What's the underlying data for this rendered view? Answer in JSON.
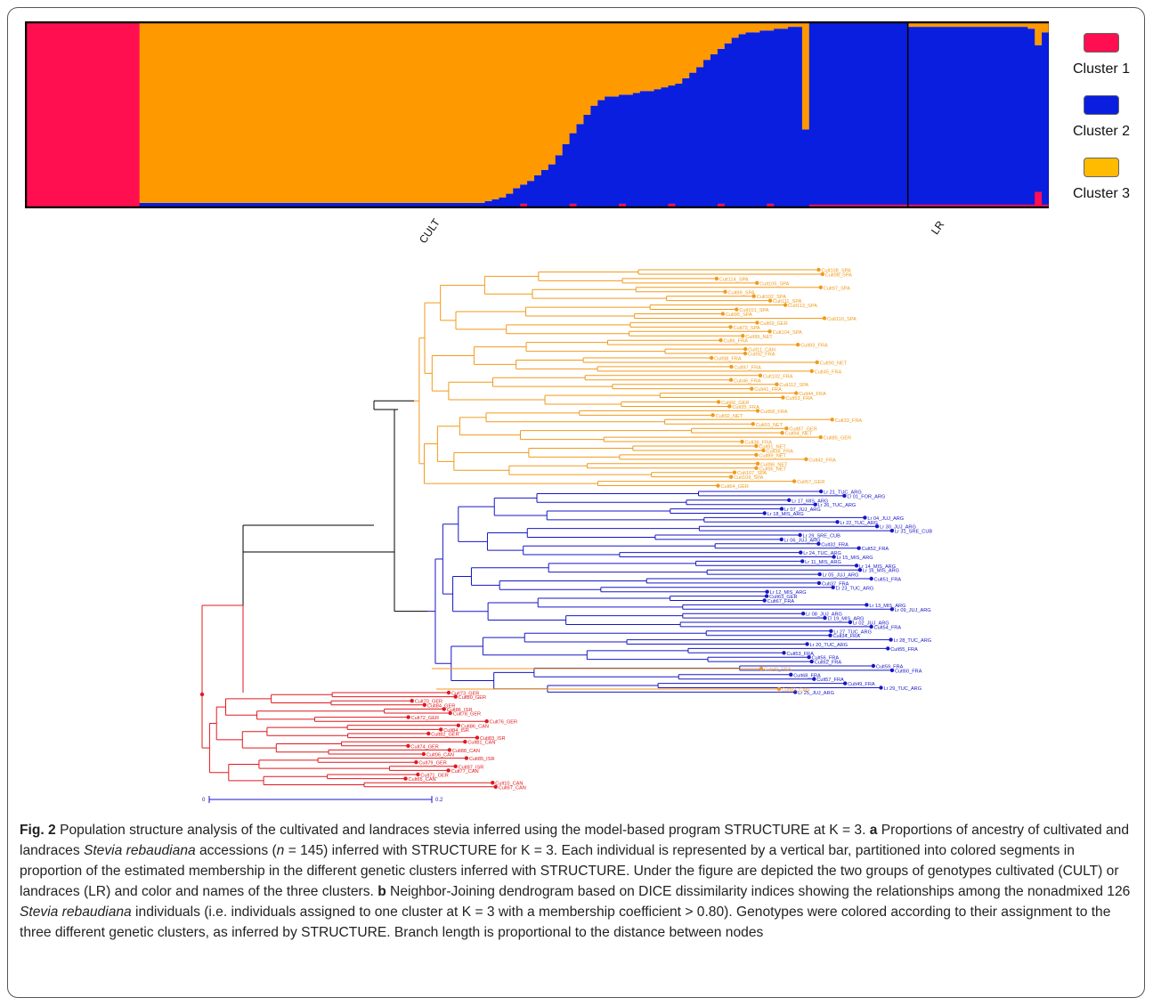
{
  "colors": {
    "cluster1": "#ff0f50",
    "cluster2": "#0a1ee0",
    "cluster3": "#ff9900",
    "tree_orange": "#f29a1a",
    "tree_blue": "#1616c8",
    "tree_red": "#e0191e",
    "tree_black": "#000000"
  },
  "legend": [
    {
      "label": "Cluster 1",
      "color": "#ff0f50"
    },
    {
      "label": "Cluster 2",
      "color": "#0a1ee0"
    },
    {
      "label": "Cluster 3",
      "color": "#ff9900"
    }
  ],
  "groups": {
    "cult": "CULT",
    "lr": "LR"
  },
  "chart_data": {
    "type": "bar",
    "stacked": true,
    "n_individuals": 145,
    "series": [
      {
        "name": "Cluster 1"
      },
      {
        "name": "Cluster 2"
      },
      {
        "name": "Cluster 3"
      }
    ],
    "groups": [
      {
        "name": "CULT",
        "individuals": 125
      },
      {
        "name": "LR",
        "individuals": 20
      }
    ],
    "cluster_blocks": [
      {
        "assigned": "Cluster 1",
        "individuals": 16,
        "membership": [
          1.0,
          0.0,
          0.0
        ]
      },
      {
        "assigned": "Cluster 3",
        "individuals": 48,
        "membership": [
          0.0,
          0.02,
          0.98
        ]
      },
      {
        "assigned": "Cluster 3 / Cluster 2 admixed",
        "individuals": 46,
        "membership_cluster3_profile": [
          0.98,
          0.97,
          0.96,
          0.95,
          0.93,
          0.9,
          0.88,
          0.86,
          0.83,
          0.8,
          0.77,
          0.72,
          0.66,
          0.6,
          0.55,
          0.5,
          0.45,
          0.42,
          0.4,
          0.4,
          0.39,
          0.39,
          0.38,
          0.37,
          0.37,
          0.36,
          0.35,
          0.34,
          0.33,
          0.3,
          0.27,
          0.24,
          0.2,
          0.17,
          0.14,
          0.11,
          0.08,
          0.06,
          0.05,
          0.05,
          0.04,
          0.04,
          0.03,
          0.03,
          0.02,
          0.02
        ]
      },
      {
        "assigned": "Cluster 2",
        "individuals": 15,
        "membership": [
          0.01,
          0.99,
          0.0
        ]
      },
      {
        "assigned": "Cluster 2 (LR)",
        "individuals": 20,
        "membership": [
          0.01,
          0.97,
          0.02
        ]
      }
    ],
    "ylim": [
      0,
      1
    ]
  },
  "tree": {
    "orange_labels": [
      "Cult108_SPA",
      "Cult98_SPA",
      "Cult114_SPA",
      "Cult105_SPA",
      "Cult97_SPA",
      "Cult99_SPA",
      "Cult102_SPA",
      "Cult111_SPA",
      "Cult113_SPA",
      "Cult101_SPA",
      "Cult95_SPA",
      "Cult110_SPA",
      "Cult69_GER",
      "Cult73_SPA",
      "Cult104_SPA",
      "Cult99_NET",
      "Cult6_FRA",
      "Cult93_FRA",
      "Cult11_CAN",
      "Cult92_FRA",
      "Cult98_FRA",
      "Cult90_NET",
      "Cult97_FRA",
      "Cult45_FRA",
      "Cult102_FRA",
      "Cult46_FRA",
      "Cult112_SPA",
      "Cult41_FRA",
      "Cult44_FRA",
      "Cult53_FRA",
      "Cult66_GER",
      "Cult35_FRA",
      "Cult58_FRA",
      "Cult92_NET",
      "Cult33_FRA",
      "Cult93_NET",
      "Cult87_GER",
      "Cult94_NET",
      "Cult85_GER",
      "Cult36_FRA",
      "Cult91_NET",
      "Cult38_FRA",
      "Cult89_NET",
      "Cult42_FRA",
      "Cult96_NET",
      "Cult95_NET",
      "Cult107_SPA",
      "Cult109_SPA",
      "Cult57_GER",
      "Cult64_GER"
    ],
    "blue_labels": [
      "Lr 21_TUC_ARG",
      "Lr 01_FOR_ARG",
      "Lr 17_MIS_ARG",
      "Lr 26_TUC_ARG",
      "Lr 07_JUJ_ARG",
      "Lr 18_MIS_ARG",
      "Lr 04_JUJ_ARG",
      "Lr 22_TUC_ARG",
      "Lr 30_JUJ_ARG",
      "Lr 31_SRE_CUB",
      "Lr 29_SRE_CUB",
      "Lr 06_JUJ_ARG",
      "Cult32_FRA",
      "Cult52_FRA",
      "Lr 24_TUC_ARG",
      "Lr 15_MIS_ARG",
      "Lr 11_MIS_ARG",
      "Lr 14_MIS_ARG",
      "Lr 16_MIS_ARG",
      "Lr 05_JUJ_ARG",
      "Cult51_FRA",
      "Cult37_FRA",
      "Lr 23_TUC_ARG",
      "Lr 12_MIS_ARG",
      "Cult63_GER",
      "Cult67_FRA",
      "Lr 13_MIS_ARG",
      "Lr 09_JUJ_ARG",
      "Lr 08_JUJ_ARG",
      "Lr 19_MIS_ARG",
      "Lr 02_JUJ_ARG",
      "Cult54_FRA",
      "Lr 27_TUC_ARG",
      "Cult34_FRA",
      "Lr 28_TUC_ARG",
      "Lr 20_TUC_ARG",
      "Cult55_FRA",
      "Cult53_FRA",
      "Cult56_FRA",
      "Cult62_FRA",
      "Cult59_FRA",
      "Cult60_FRA",
      "Cult68_FRA",
      "Cult57_FRA",
      "Cult49_FRA",
      "Lr 29_TUC_ARG",
      "Lr 25_JUJ_ARG"
    ],
    "orange_in_blue": [
      "Cult40_FRA",
      "Cult82_CAN"
    ],
    "red_labels": [
      "Cult73_GER",
      "Cult80_GER",
      "Cult70_GER",
      "Cult84_GER",
      "Cult86_ISR",
      "Cult78_GER",
      "Cult72_GER",
      "Cult76_GER",
      "Cult86_CAN",
      "Cult84_ISR",
      "Cult82_GER",
      "Cult83_ISR",
      "Cult81_CAN",
      "Cult74_GER",
      "Cult88_CAN",
      "Cult06_CAN",
      "Cult85_ISR",
      "Cult79_GER",
      "Cult87_ISR",
      "Cult77_CAN",
      "Cult71_GER",
      "Cult65_CAN",
      "Cult10_CAN",
      "Cult67_CAN"
    ],
    "scale": {
      "start": "0",
      "end": "0.2"
    }
  },
  "caption": {
    "fig_label": "Fig. 2",
    "title": " Population structure analysis of the cultivated and landraces stevia inferred using the model-based program STRUCTURE at K = 3. ",
    "a_label": "a",
    "a_text_1": " Proportions of ancestry of cultivated and landraces ",
    "a_species": "Stevia rebaudiana",
    "a_text_2": " accessions (",
    "a_n": "n",
    "a_text_3": " = 145) inferred with STRUCTURE for K = 3. Each individual is represented by a vertical bar, partitioned into colored segments in proportion of the estimated membership in the different genetic clusters inferred with STRUCTURE. Under the figure are depicted the two groups of genotypes cultivated (CULT) or landraces (LR) and color and names of the three clusters. ",
    "b_label": "b",
    "b_text_1": " Neighbor-Joining dendrogram based on DICE dissimilarity indices showing the relationships among the nonadmixed 126 ",
    "b_species": "Stevia rebaudiana",
    "b_text_2": " individuals (i.e. individuals assigned to one cluster at K = 3 with a membership coefficient > 0.80). Genotypes were colored according to their assignment to the three different genetic clusters, as inferred by STRUCTURE. Branch length is proportional to the distance between nodes"
  }
}
